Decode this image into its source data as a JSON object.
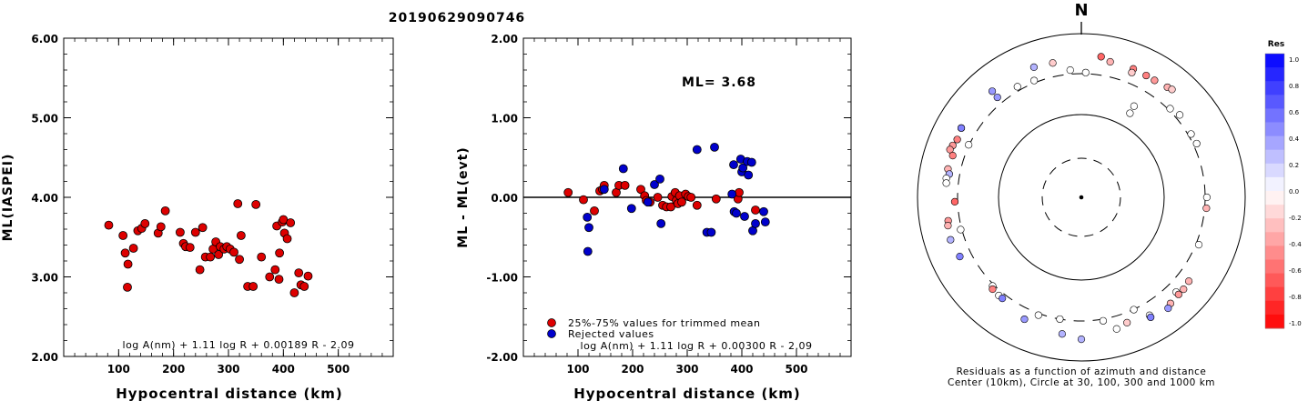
{
  "event_title": "20190629090746",
  "chart_data": [
    {
      "type": "scatter",
      "ylabel": "ML(IASPEI)",
      "xlabel": "Hypocentral distance (km)",
      "xlim": [
        0,
        600
      ],
      "ylim": [
        2.0,
        6.0
      ],
      "x_ticks": [
        "100",
        "200",
        "300",
        "400",
        "500"
      ],
      "y_ticks": [
        "2.00",
        "3.00",
        "4.00",
        "5.00",
        "6.00"
      ],
      "formula": "log A(nm) + 1.11 log R + 0.00189 R - 2.09",
      "marker_color": "#dd0000",
      "points": [
        [
          82,
          3.65
        ],
        [
          108,
          3.52
        ],
        [
          112,
          3.3
        ],
        [
          117,
          3.16
        ],
        [
          116,
          2.87
        ],
        [
          127,
          3.36
        ],
        [
          135,
          3.58
        ],
        [
          142,
          3.61
        ],
        [
          148,
          3.67
        ],
        [
          172,
          3.55
        ],
        [
          177,
          3.63
        ],
        [
          185,
          3.83
        ],
        [
          212,
          3.56
        ],
        [
          218,
          3.42
        ],
        [
          222,
          3.38
        ],
        [
          230,
          3.37
        ],
        [
          240,
          3.56
        ],
        [
          248,
          3.09
        ],
        [
          253,
          3.62
        ],
        [
          258,
          3.25
        ],
        [
          267,
          3.25
        ],
        [
          272,
          3.35
        ],
        [
          277,
          3.44
        ],
        [
          282,
          3.28
        ],
        [
          285,
          3.38
        ],
        [
          292,
          3.35
        ],
        [
          297,
          3.38
        ],
        [
          303,
          3.35
        ],
        [
          310,
          3.31
        ],
        [
          317,
          3.92
        ],
        [
          320,
          3.22
        ],
        [
          323,
          3.52
        ],
        [
          335,
          2.88
        ],
        [
          345,
          2.88
        ],
        [
          350,
          3.91
        ],
        [
          360,
          3.25
        ],
        [
          375,
          3.0
        ],
        [
          385,
          3.09
        ],
        [
          388,
          3.64
        ],
        [
          392,
          2.97
        ],
        [
          393,
          3.3
        ],
        [
          398,
          3.69
        ],
        [
          400,
          3.72
        ],
        [
          402,
          3.55
        ],
        [
          407,
          3.48
        ],
        [
          413,
          3.68
        ],
        [
          420,
          2.8
        ],
        [
          428,
          3.05
        ],
        [
          432,
          2.9
        ],
        [
          438,
          2.88
        ],
        [
          445,
          3.01
        ]
      ]
    },
    {
      "type": "scatter",
      "ylabel": "ML - ML(evt)",
      "xlabel": "Hypocentral distance (km)",
      "xlim": [
        0,
        600
      ],
      "ylim": [
        -2.0,
        2.0
      ],
      "x_ticks": [
        "100",
        "200",
        "300",
        "400",
        "500"
      ],
      "y_ticks": [
        "-2.00",
        "-1.00",
        "0.00",
        "1.00",
        "2.00"
      ],
      "annotation": "ML= 3.68",
      "formula": "log A(nm) + 1.11 log R + 0.00300 R - 2.09",
      "legend": [
        {
          "label": "25%-75% values for trimmed mean",
          "color": "#dd0000"
        },
        {
          "label": "Rejected values",
          "color": "#0000cc"
        }
      ],
      "trimmed_points": [
        [
          82,
          0.06
        ],
        [
          110,
          -0.03
        ],
        [
          130,
          -0.17
        ],
        [
          140,
          0.08
        ],
        [
          145,
          0.1
        ],
        [
          148,
          0.15
        ],
        [
          170,
          0.06
        ],
        [
          175,
          0.15
        ],
        [
          186,
          0.15
        ],
        [
          215,
          0.1
        ],
        [
          222,
          0.02
        ],
        [
          225,
          -0.04
        ],
        [
          232,
          -0.06
        ],
        [
          246,
          0.0
        ],
        [
          255,
          -0.1
        ],
        [
          262,
          -0.12
        ],
        [
          270,
          -0.12
        ],
        [
          272,
          0.01
        ],
        [
          278,
          0.06
        ],
        [
          280,
          -0.04
        ],
        [
          283,
          -0.08
        ],
        [
          286,
          0.02
        ],
        [
          290,
          -0.06
        ],
        [
          297,
          0.04
        ],
        [
          302,
          0.01
        ],
        [
          307,
          0.0
        ],
        [
          318,
          -0.1
        ],
        [
          353,
          -0.02
        ],
        [
          393,
          -0.02
        ],
        [
          395,
          0.06
        ],
        [
          425,
          -0.16
        ]
      ],
      "rejected_points": [
        [
          117,
          -0.25
        ],
        [
          118,
          -0.68
        ],
        [
          120,
          -0.38
        ],
        [
          148,
          0.1
        ],
        [
          183,
          0.36
        ],
        [
          198,
          -0.14
        ],
        [
          228,
          -0.06
        ],
        [
          240,
          0.16
        ],
        [
          250,
          0.23
        ],
        [
          252,
          -0.33
        ],
        [
          318,
          0.6
        ],
        [
          336,
          -0.44
        ],
        [
          344,
          -0.44
        ],
        [
          350,
          0.63
        ],
        [
          382,
          0.04
        ],
        [
          385,
          0.41
        ],
        [
          386,
          -0.18
        ],
        [
          390,
          -0.2
        ],
        [
          398,
          0.48
        ],
        [
          400,
          0.32
        ],
        [
          402,
          0.37
        ],
        [
          405,
          -0.24
        ],
        [
          410,
          0.45
        ],
        [
          412,
          0.28
        ],
        [
          418,
          0.44
        ],
        [
          420,
          -0.42
        ],
        [
          425,
          -0.33
        ],
        [
          440,
          -0.18
        ],
        [
          443,
          -0.31
        ]
      ]
    },
    {
      "type": "polar-scatter",
      "north_label": "N",
      "caption_line1": "Residuals as a function of azimuth and distance",
      "caption_line2": "Center (10km), Circle at 30, 100, 300 and 1000 km",
      "colorbar_title": "Res",
      "colorbar_ticks": [
        "1.0",
        "0.8",
        "0.6",
        "0.4",
        "0.2",
        "0.0",
        "-0.2",
        "-0.4",
        "-0.6",
        "-0.8",
        "-1.0"
      ],
      "points_az_dist_res": [
        [
          2,
          320,
          0.0
        ],
        [
          45,
          330,
          0.0
        ],
        [
          65,
          360,
          0.0
        ],
        [
          90,
          330,
          0.0
        ],
        [
          112,
          350,
          0.0
        ],
        [
          155,
          305,
          0.0
        ],
        [
          170,
          330,
          0.0
        ],
        [
          190,
          300,
          0.0
        ],
        [
          200,
          330,
          0.0
        ],
        [
          225,
          330,
          0.0
        ],
        [
          255,
          320,
          0.0
        ],
        [
          295,
          310,
          0.0
        ],
        [
          330,
          370,
          0.0
        ],
        [
          338,
          340,
          0.0
        ],
        [
          355,
          370,
          0.0
        ],
        [
          30,
          170,
          0.0
        ],
        [
          30,
          210,
          0.0
        ],
        [
          12,
          560,
          -0.3
        ],
        [
          28,
          550,
          -0.5
        ],
        [
          32,
          550,
          -0.4
        ],
        [
          22,
          560,
          -0.5
        ],
        [
          38,
          580,
          -0.3
        ],
        [
          40,
          600,
          -0.2
        ],
        [
          8,
          620,
          -0.6
        ],
        [
          22,
          490,
          -0.2
        ],
        [
          -12,
          540,
          -0.2
        ],
        [
          -40,
          420,
          0.4
        ],
        [
          -60,
          560,
          -0.3
        ],
        [
          -65,
          530,
          -0.5
        ],
        [
          -68,
          560,
          -0.4
        ],
        [
          -70,
          580,
          -0.4
        ],
        [
          -72,
          500,
          -0.5
        ],
        [
          -78,
          520,
          -0.3
        ],
        [
          -80,
          480,
          0.3
        ],
        [
          -82,
          520,
          0.0
        ],
        [
          -84,
          510,
          0.0
        ],
        [
          -92,
          350,
          -0.6
        ],
        [
          -100,
          500,
          -0.4
        ],
        [
          -102,
          520,
          -0.3
        ],
        [
          -108,
          540,
          0.3
        ],
        [
          -116,
          500,
          0.5
        ],
        [
          -136,
          370,
          -0.5
        ],
        [
          -140,
          380,
          0.0
        ],
        [
          -142,
          380,
          0.5
        ],
        [
          -155,
          490,
          0.4
        ],
        [
          -172,
          550,
          0.3
        ],
        [
          -180,
          620,
          0.3
        ],
        [
          -195,
          520,
          0.0
        ],
        [
          -200,
          470,
          -0.2
        ],
        [
          -210,
          520,
          0.0
        ],
        [
          -210,
          560,
          0.5
        ],
        [
          -220,
          560,
          -0.3
        ],
        [
          -218,
          600,
          0.4
        ],
        [
          -225,
          480,
          0.0
        ],
        [
          -225,
          540,
          -0.4
        ],
        [
          -228,
          540,
          -0.3
        ],
        [
          -232,
          520,
          -0.3
        ],
        [
          -60,
          560,
          0.5
        ],
        [
          -40,
          560,
          0.4
        ],
        [
          -20,
          560,
          0.3
        ],
        [
          50,
          380,
          0.0
        ],
        [
          60,
          350,
          0.0
        ],
        [
          95,
          330,
          -0.3
        ]
      ]
    }
  ]
}
